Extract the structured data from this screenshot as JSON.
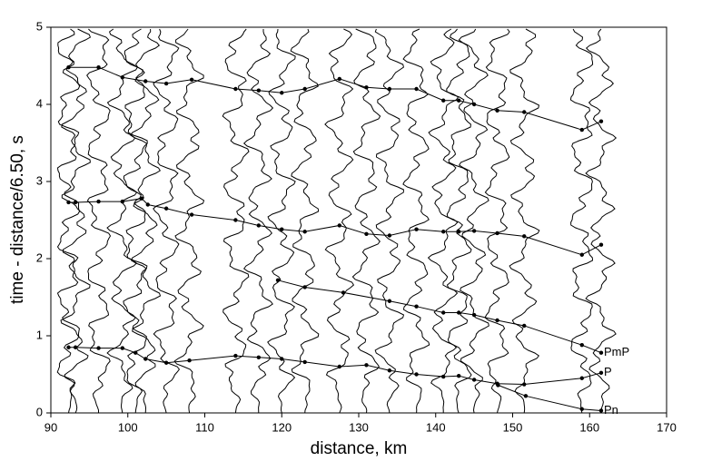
{
  "chart_data": {
    "type": "line",
    "x_label": "distance, km",
    "y_label": "time - distance/6.50, s",
    "xlim": [
      90,
      170
    ],
    "xticks": [
      90,
      100,
      110,
      120,
      130,
      140,
      150,
      160,
      170
    ],
    "ylim": [
      0,
      5
    ],
    "yticks": [
      0,
      1,
      2,
      3,
      4,
      5
    ],
    "color": "#000000",
    "series": [
      {
        "name": "P",
        "x": [
          92.3,
          93.2,
          96.2,
          99.3,
          101,
          102.3,
          105,
          108,
          114,
          117,
          120,
          123,
          127.5,
          131,
          134,
          137.5,
          141,
          143,
          145,
          148,
          151.5,
          159,
          161.5
        ],
        "values": [
          0.85,
          0.85,
          0.84,
          0.84,
          0.78,
          0.7,
          0.65,
          0.68,
          0.74,
          0.72,
          0.7,
          0.66,
          0.6,
          0.62,
          0.55,
          0.5,
          0.47,
          0.48,
          0.43,
          0.38,
          0.37,
          0.45,
          0.52
        ]
      },
      {
        "name": "Pn",
        "x": [
          148.1,
          151.7,
          159,
          161.5
        ],
        "values": [
          0.36,
          0.22,
          0.05,
          0.03
        ]
      },
      {
        "name": "PmP",
        "x": [
          119.5,
          123,
          128,
          134,
          137.5,
          141,
          143,
          145,
          148,
          151.5,
          159,
          161.5
        ],
        "values": [
          1.72,
          1.63,
          1.56,
          1.45,
          1.38,
          1.3,
          1.3,
          1.27,
          1.2,
          1.13,
          0.88,
          0.78
        ]
      },
      {
        "x": [
          92.3,
          93.2,
          96.2,
          99.3,
          101.8,
          102.6,
          105,
          108.3,
          114,
          117,
          120,
          123,
          127.5,
          131,
          134,
          137.5,
          141,
          143,
          145,
          148,
          151.5,
          159,
          161.5
        ],
        "values": [
          2.73,
          2.73,
          2.74,
          2.74,
          2.78,
          2.7,
          2.65,
          2.57,
          2.5,
          2.43,
          2.38,
          2.35,
          2.43,
          2.32,
          2.3,
          2.38,
          2.35,
          2.35,
          2.36,
          2.33,
          2.29,
          2.05,
          2.18
        ]
      },
      {
        "x": [
          92.3,
          96.2,
          99.3,
          102.3,
          105,
          108.3,
          114,
          117,
          120,
          123,
          127.5,
          131,
          134,
          137.5,
          141,
          143,
          145,
          148,
          151.5,
          159,
          161.5
        ],
        "values": [
          4.48,
          4.48,
          4.35,
          4.3,
          4.27,
          4.32,
          4.2,
          4.18,
          4.15,
          4.2,
          4.33,
          4.22,
          4.2,
          4.2,
          4.05,
          4.05,
          4.0,
          3.92,
          3.9,
          3.67,
          3.78
        ]
      }
    ]
  }
}
